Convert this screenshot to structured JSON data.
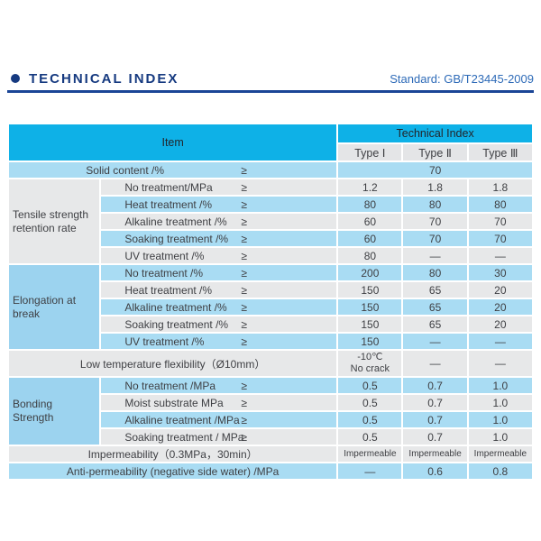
{
  "colors": {
    "header_cyan": "#0eb1e7",
    "row_blue": "#a9dcf3",
    "group_blue": "#9cd3ef",
    "row_gray": "#e7e8e9",
    "title_navy": "#163a80",
    "standard_blue": "#2e6bb8",
    "rule_navy": "#1a4596"
  },
  "header": {
    "title": "TECHNICAL INDEX",
    "standard": "Standard: GB/T23445-2009"
  },
  "table": {
    "gte": "≥",
    "header": {
      "item": "Item",
      "technical_index": "Technical Index",
      "types": [
        "Type Ⅰ",
        "Type Ⅱ",
        "Type Ⅲ"
      ]
    },
    "solid": {
      "label": "Solid content /%",
      "value": "70"
    },
    "tensile": {
      "group": "Tensile strength retention rate",
      "rows": [
        {
          "label": "No treatment/MPa",
          "values": [
            "1.2",
            "1.8",
            "1.8"
          ]
        },
        {
          "label": "Heat treatment /%",
          "values": [
            "80",
            "80",
            "80"
          ]
        },
        {
          "label": "Alkaline treatment /%",
          "values": [
            "60",
            "70",
            "70"
          ]
        },
        {
          "label": "Soaking treatment /%",
          "values": [
            "60",
            "70",
            "70"
          ]
        },
        {
          "label": "UV treatment /%",
          "values": [
            "80",
            "—",
            "—"
          ]
        }
      ]
    },
    "elongation": {
      "group": "Elongation at break",
      "rows": [
        {
          "label": "No treatment /%",
          "values": [
            "200",
            "80",
            "30"
          ]
        },
        {
          "label": "Heat treatment /%",
          "values": [
            "150",
            "65",
            "20"
          ]
        },
        {
          "label": "Alkaline treatment /%",
          "values": [
            "150",
            "65",
            "20"
          ]
        },
        {
          "label": "Soaking treatment /%",
          "values": [
            "150",
            "65",
            "20"
          ]
        },
        {
          "label": "UV treatment /%",
          "values": [
            "150",
            "—",
            "—"
          ]
        }
      ]
    },
    "low_temp": {
      "label": "Low temperature flexibility（Ø10mm）",
      "value1_line1": "-10℃",
      "value1_line2": "No crack",
      "value2": "—",
      "value3": "—"
    },
    "bonding": {
      "group": "Bonding Strength",
      "rows": [
        {
          "label": "No treatment /MPa",
          "values": [
            "0.5",
            "0.7",
            "1.0"
          ]
        },
        {
          "label": "Moist substrate MPa",
          "values": [
            "0.5",
            "0.7",
            "1.0"
          ]
        },
        {
          "label": "Alkaline treatment /MPa",
          "values": [
            "0.5",
            "0.7",
            "1.0"
          ]
        },
        {
          "label": "Soaking treatment / MPa",
          "values": [
            "0.5",
            "0.7",
            "1.0"
          ]
        }
      ]
    },
    "impermeability": {
      "label": "Impermeability（0.3MPa，30min）",
      "values": [
        "Impermeable",
        "Impermeable",
        "Impermeable"
      ]
    },
    "anti_permeability": {
      "label": "Anti-permeability (negative side water) /MPa",
      "values": [
        "—",
        "0.6",
        "0.8"
      ]
    }
  }
}
